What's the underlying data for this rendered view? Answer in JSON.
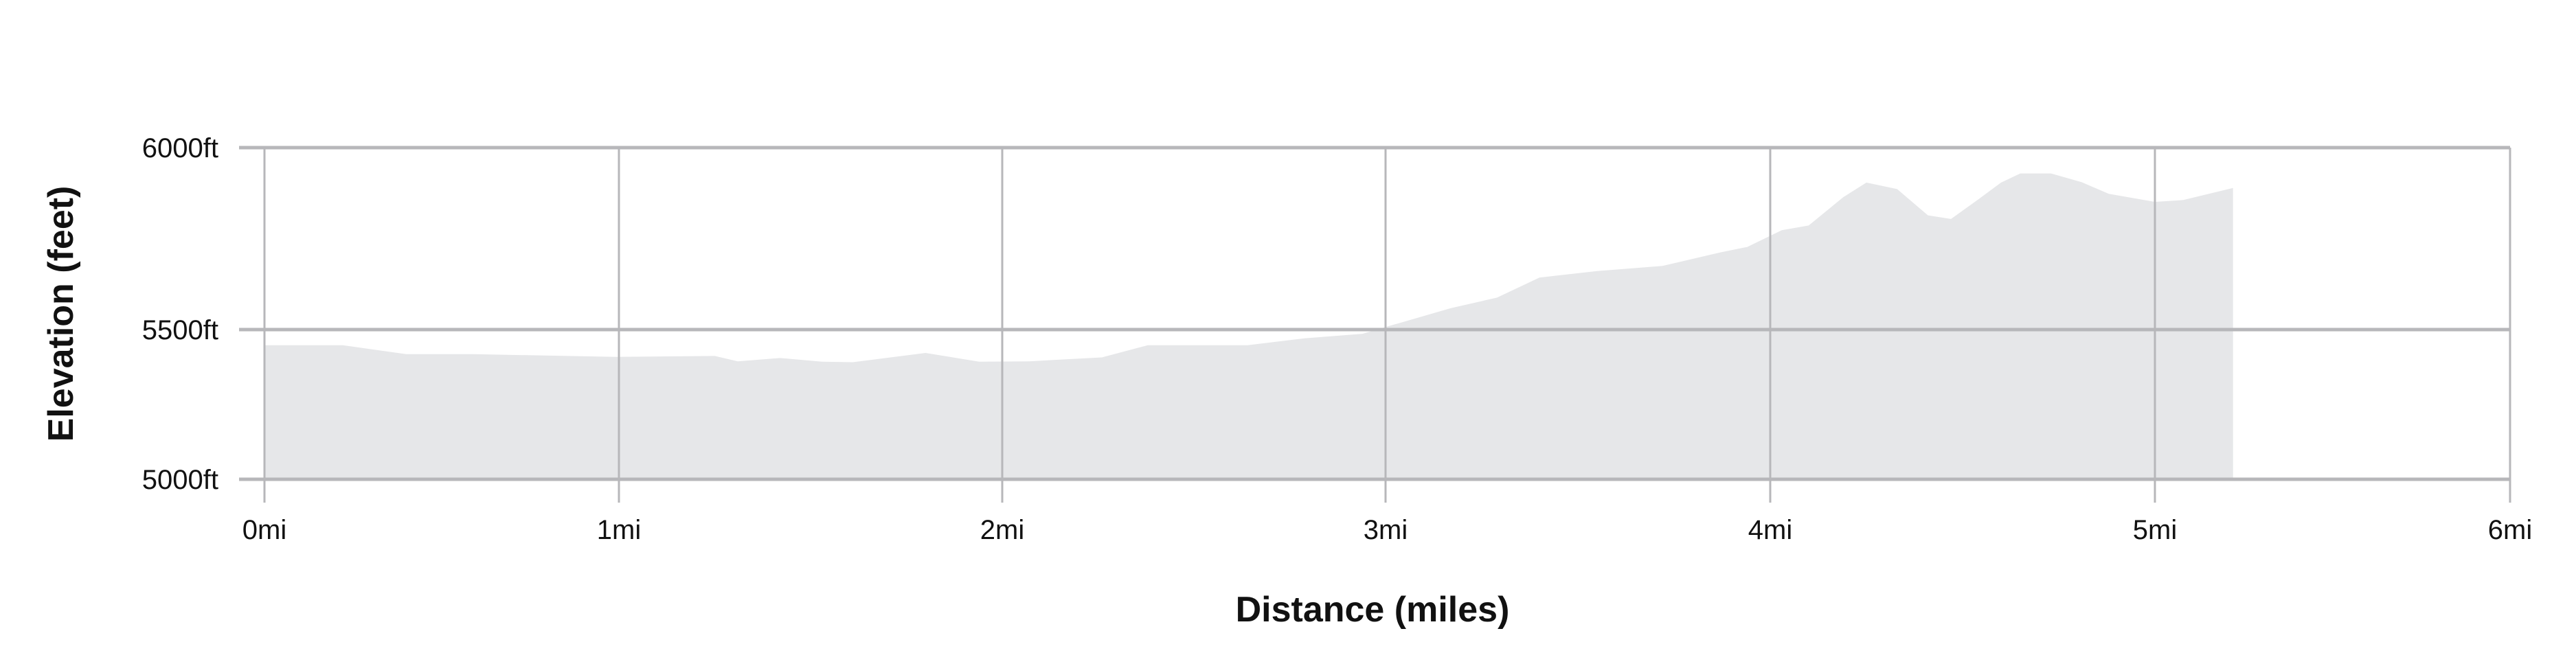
{
  "chart_data": {
    "type": "area",
    "title": "",
    "xlabel": "Distance (miles)",
    "ylabel": "Elevation (feet)",
    "xlim": [
      0,
      6
    ],
    "ylim": [
      5000,
      6000
    ],
    "grid": true,
    "fill_color": "#e6e7e9",
    "grid_color": "#b7b7ba",
    "x_ticks": [
      {
        "value": 0,
        "label": "0mi"
      },
      {
        "value": 1,
        "label": "1mi"
      },
      {
        "value": 2,
        "label": "2mi"
      },
      {
        "value": 3,
        "label": "3mi"
      },
      {
        "value": 4,
        "label": "4mi"
      },
      {
        "value": 5,
        "label": "5mi"
      },
      {
        "value": 6,
        "label": "6mi"
      }
    ],
    "y_ticks": [
      {
        "value": 5000,
        "label": "5000ft"
      },
      {
        "value": 5500,
        "label": "5500ft"
      },
      {
        "value": 6000,
        "label": "6000ft"
      }
    ],
    "series": [
      {
        "x": [
          0,
          0.22,
          0.4,
          0.59,
          0.99,
          1.25,
          1.31,
          1.42,
          1.53,
          1.61,
          1.8,
          1.94,
          2.07,
          2.26,
          2.38,
          2.64,
          2.79,
          2.94,
          3.0,
          3.17,
          3.29,
          3.4,
          3.55,
          3.72,
          3.87,
          3.94,
          4.03,
          4.1,
          4.19,
          4.25,
          4.33,
          4.41,
          4.47,
          4.54,
          4.6,
          4.65,
          4.73,
          4.81,
          4.88,
          5.0,
          5.08,
          5.22
        ],
        "y": [
          5448,
          5448,
          5418,
          5418,
          5409,
          5412,
          5394,
          5405,
          5393,
          5391,
          5422,
          5393,
          5394,
          5407,
          5448,
          5448,
          5471,
          5486,
          5507,
          5559,
          5588,
          5643,
          5661,
          5675,
          5712,
          5727,
          5773,
          5786,
          5864,
          5904,
          5886,
          5814,
          5804,
          5857,
          5904,
          5929,
          5929,
          5905,
          5873,
          5851,
          5856,
          5889
        ]
      }
    ]
  }
}
